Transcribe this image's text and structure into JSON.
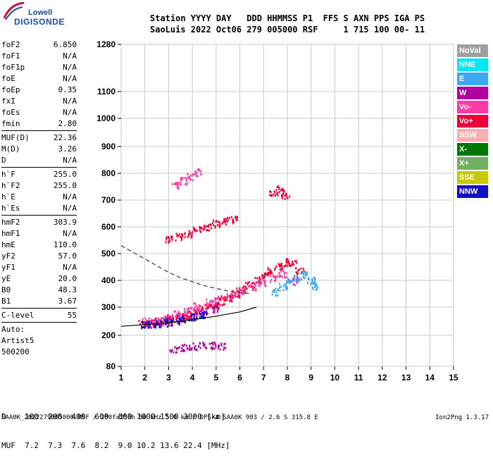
{
  "logo": {
    "line1": "Lowell",
    "line2": "DIGISONDE"
  },
  "header": {
    "line1": "Station YYYY DAY   DDD HHMMSS P1  FFS S AXN PPS IGA PS",
    "line2": "SaoLuis 2022 Oct06 279 005000 RSF     1 715 100 00- 11"
  },
  "params": [
    {
      "group": 1,
      "label": "foF2",
      "value": "6.850"
    },
    {
      "group": 1,
      "label": "foF1",
      "value": "N/A"
    },
    {
      "group": 1,
      "label": "foF1p",
      "value": "N/A"
    },
    {
      "group": 1,
      "label": "foE",
      "value": "N/A"
    },
    {
      "group": 1,
      "label": "foEp",
      "value": "0.35"
    },
    {
      "group": 1,
      "label": "fxI",
      "value": "N/A"
    },
    {
      "group": 1,
      "label": "foEs",
      "value": "N/A"
    },
    {
      "group": 1,
      "label": "fmin",
      "value": "2.80"
    },
    {
      "group": 2,
      "label": "MUF(D)",
      "value": "22.36"
    },
    {
      "group": 2,
      "label": "M(D)",
      "value": "3.26"
    },
    {
      "group": 2,
      "label": "D",
      "value": "N/A"
    },
    {
      "group": 3,
      "label": "h`F",
      "value": "255.0"
    },
    {
      "group": 3,
      "label": "h`F2",
      "value": "255.0"
    },
    {
      "group": 3,
      "label": "h`E",
      "value": "N/A"
    },
    {
      "group": 3,
      "label": "h`Es",
      "value": "N/A"
    },
    {
      "group": 4,
      "label": "hmF2",
      "value": "303.9"
    },
    {
      "group": 4,
      "label": "hmF1",
      "value": "N/A"
    },
    {
      "group": 4,
      "label": "hmE",
      "value": "110.0"
    },
    {
      "group": 4,
      "label": "yF2",
      "value": "57.0"
    },
    {
      "group": 4,
      "label": "yF1",
      "value": "N/A"
    },
    {
      "group": 4,
      "label": "yE",
      "value": "20.0"
    },
    {
      "group": 4,
      "label": "B0",
      "value": "48.3"
    },
    {
      "group": 4,
      "label": "B1",
      "value": "3.67"
    },
    {
      "group": 5,
      "label": "C-level",
      "value": "55"
    }
  ],
  "auto": {
    "line1": "Auto:",
    "line2": "Artist5",
    "line3": "500200"
  },
  "legend": [
    {
      "label": "NoVal",
      "color": "#a0a0a0"
    },
    {
      "label": "NNE",
      "color": "#00e8f0"
    },
    {
      "label": "E",
      "color": "#3aa8f0"
    },
    {
      "label": "W",
      "color": "#b0009f"
    },
    {
      "label": "Vo-",
      "color": "#ff3aa8"
    },
    {
      "label": "Vo+",
      "color": "#f0003a"
    },
    {
      "label": "SSW",
      "color": "#f8b0b0"
    },
    {
      "label": "X-",
      "color": "#007800"
    },
    {
      "label": "X+",
      "color": "#70b060"
    },
    {
      "label": "SSE",
      "color": "#c8c800"
    },
    {
      "label": "NNW",
      "color": "#1010c8"
    }
  ],
  "bottom": {
    "row1": "D    100  200  400  600  800 1000 1500 3000 [km]",
    "row2": "MUF  7.2  7.3  7.6  8.2  9.0 10.2 13.6 22.4 [MHz]"
  },
  "footer": {
    "left": "SAA0K_2022279005000.RSF / 280fx256h 50 kHz 5.0 km / DPS-4 SAA0K 903 / 2.6 S 315.8 E",
    "right": "Ion2Png 1.3.17"
  },
  "chart_data": {
    "type": "scatter",
    "title": "",
    "xlabel": "",
    "ylabel": "",
    "xlim": [
      1,
      15
    ],
    "ylim": [
      80,
      1280
    ],
    "y_scale": "nonlinear (ionogram virtual height)",
    "grid": true,
    "x_ticks": [
      1,
      2,
      3,
      4,
      5,
      6,
      7,
      8,
      9,
      10,
      11,
      12,
      13,
      14,
      15
    ],
    "y_ticks": [
      80,
      200,
      300,
      400,
      500,
      600,
      700,
      800,
      900,
      1000,
      1100,
      1280
    ],
    "y_tick_map": [
      [
        80,
        0.0
      ],
      [
        200,
        0.1
      ],
      [
        300,
        0.2
      ],
      [
        400,
        0.3
      ],
      [
        500,
        0.4
      ],
      [
        600,
        0.5
      ],
      [
        700,
        0.6
      ],
      [
        800,
        0.7
      ],
      [
        900,
        0.8
      ],
      [
        1000,
        0.8
      ],
      [
        1100,
        0.9
      ],
      [
        1280,
        1.0
      ]
    ],
    "note_y_tick_map": "",
    "series": [
      {
        "color_key": "Vo+",
        "points": [
          [
            1.9,
            243
          ],
          [
            2.2,
            245
          ],
          [
            2.5,
            248
          ],
          [
            2.8,
            252
          ],
          [
            3.1,
            258
          ],
          [
            3.4,
            265
          ],
          [
            3.7,
            272
          ],
          [
            4.0,
            280
          ],
          [
            4.3,
            290
          ],
          [
            4.6,
            300
          ],
          [
            4.9,
            312
          ],
          [
            5.2,
            325
          ],
          [
            5.5,
            338
          ],
          [
            5.8,
            352
          ],
          [
            6.1,
            368
          ],
          [
            6.4,
            385
          ],
          [
            6.7,
            402
          ],
          [
            7.0,
            420
          ],
          [
            7.3,
            440
          ],
          [
            7.6,
            455
          ],
          [
            7.9,
            470
          ],
          [
            8.2,
            465
          ],
          [
            8.5,
            440
          ]
        ]
      },
      {
        "color_key": "Vo-",
        "points": [
          [
            2.0,
            250
          ],
          [
            2.4,
            255
          ],
          [
            2.9,
            265
          ],
          [
            3.3,
            275
          ],
          [
            3.8,
            290
          ],
          [
            4.2,
            305
          ],
          [
            4.7,
            320
          ],
          [
            5.1,
            335
          ],
          [
            5.6,
            350
          ],
          [
            6.0,
            365
          ],
          [
            6.5,
            380
          ],
          [
            6.9,
            395
          ],
          [
            7.4,
            410
          ],
          [
            7.8,
            425
          ],
          [
            8.3,
            400
          ]
        ]
      },
      {
        "color_key": "E",
        "points": [
          [
            7.5,
            360
          ],
          [
            7.8,
            380
          ],
          [
            8.1,
            400
          ],
          [
            8.4,
            410
          ],
          [
            8.7,
            420
          ],
          [
            9.0,
            405
          ],
          [
            9.1,
            380
          ]
        ]
      },
      {
        "color_key": "W",
        "points": [
          [
            2.1,
            240
          ],
          [
            2.6,
            246
          ],
          [
            3.0,
            252
          ],
          [
            3.5,
            260
          ],
          [
            4.0,
            270
          ],
          [
            4.5,
            282
          ],
          [
            5.0,
            296
          ]
        ]
      },
      {
        "color_key": "NNW",
        "points": [
          [
            2.0,
            240
          ],
          [
            2.5,
            243
          ],
          [
            3.0,
            248
          ],
          [
            3.5,
            255
          ],
          [
            4.0,
            265
          ],
          [
            4.4,
            274
          ]
        ]
      },
      {
        "color_key": "Vo+",
        "points": [
          [
            3.0,
            555
          ],
          [
            3.4,
            565
          ],
          [
            3.8,
            578
          ],
          [
            4.2,
            590
          ],
          [
            4.6,
            602
          ],
          [
            5.0,
            615
          ],
          [
            5.4,
            625
          ],
          [
            5.7,
            630
          ]
        ]
      },
      {
        "color_key": "Vo-",
        "points": [
          [
            3.3,
            760
          ],
          [
            3.6,
            775
          ],
          [
            3.9,
            790
          ],
          [
            4.2,
            805
          ]
        ]
      },
      {
        "color_key": "W",
        "points": [
          [
            3.2,
            150
          ],
          [
            3.6,
            155
          ],
          [
            4.0,
            160
          ],
          [
            4.4,
            165
          ],
          [
            4.8,
            163
          ],
          [
            5.2,
            158
          ]
        ]
      },
      {
        "color_key": "Vo+",
        "points": [
          [
            7.4,
            730
          ],
          [
            7.7,
            745
          ],
          [
            7.9,
            720
          ]
        ]
      }
    ],
    "curves": [
      {
        "style": "dashed",
        "points": [
          [
            1.0,
            530
          ],
          [
            1.5,
            505
          ],
          [
            2.0,
            480
          ],
          [
            2.5,
            455
          ],
          [
            3.0,
            430
          ],
          [
            3.5,
            410
          ],
          [
            4.0,
            395
          ],
          [
            4.5,
            380
          ],
          [
            5.0,
            370
          ],
          [
            5.5,
            360
          ],
          [
            6.0,
            355
          ],
          [
            6.5,
            350
          ]
        ]
      },
      {
        "style": "solid",
        "points": [
          [
            1.0,
            232
          ],
          [
            2.0,
            238
          ],
          [
            3.0,
            245
          ],
          [
            4.0,
            255
          ],
          [
            5.0,
            268
          ],
          [
            6.0,
            283
          ],
          [
            6.7,
            300
          ]
        ]
      }
    ]
  }
}
